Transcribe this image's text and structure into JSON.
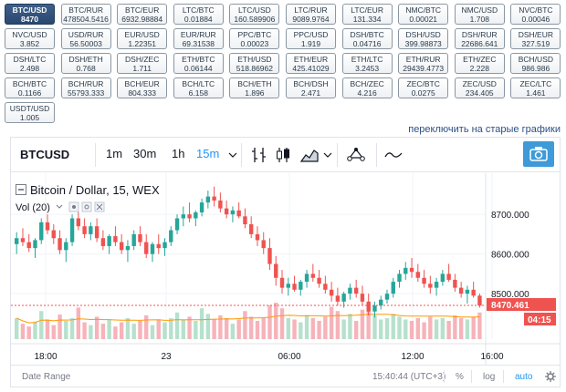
{
  "pairs": [
    {
      "name": "BTC/USD",
      "price": "8470",
      "active": true
    },
    {
      "name": "BTC/RUR",
      "price": "478504.5416"
    },
    {
      "name": "BTC/EUR",
      "price": "6932.98884"
    },
    {
      "name": "LTC/BTC",
      "price": "0.01884"
    },
    {
      "name": "LTC/USD",
      "price": "160.589906"
    },
    {
      "name": "LTC/RUR",
      "price": "9089.9764"
    },
    {
      "name": "LTC/EUR",
      "price": "131.334"
    },
    {
      "name": "NMC/BTC",
      "price": "0.00021"
    },
    {
      "name": "NMC/USD",
      "price": "1.708"
    },
    {
      "name": "NVC/BTC",
      "price": "0.00046"
    },
    {
      "name": "NVC/USD",
      "price": "3.852"
    },
    {
      "name": "USD/RUR",
      "price": "56.50003"
    },
    {
      "name": "EUR/USD",
      "price": "1.22351"
    },
    {
      "name": "EUR/RUR",
      "price": "69.31538"
    },
    {
      "name": "PPC/BTC",
      "price": "0.00023"
    },
    {
      "name": "PPC/USD",
      "price": "1.919"
    },
    {
      "name": "DSH/BTC",
      "price": "0.04716"
    },
    {
      "name": "DSH/USD",
      "price": "399.98873"
    },
    {
      "name": "DSH/RUR",
      "price": "22686.641"
    },
    {
      "name": "DSH/EUR",
      "price": "327.519"
    },
    {
      "name": "DSH/LTC",
      "price": "2.498"
    },
    {
      "name": "DSH/ETH",
      "price": "0.768"
    },
    {
      "name": "DSH/ZEC",
      "price": "1.711"
    },
    {
      "name": "ETH/BTC",
      "price": "0.06144"
    },
    {
      "name": "ETH/USD",
      "price": "518.86962"
    },
    {
      "name": "ETH/EUR",
      "price": "425.41029"
    },
    {
      "name": "ETH/LTC",
      "price": "3.2453"
    },
    {
      "name": "ETH/RUR",
      "price": "29439.4773"
    },
    {
      "name": "ETH/ZEC",
      "price": "2.228"
    },
    {
      "name": "BCH/USD",
      "price": "986.986"
    },
    {
      "name": "BCH/BTC",
      "price": "0.1166"
    },
    {
      "name": "BCH/RUR",
      "price": "55793.333"
    },
    {
      "name": "BCH/EUR",
      "price": "804.333"
    },
    {
      "name": "BCH/LTC",
      "price": "6.158"
    },
    {
      "name": "BCH/ETH",
      "price": "1.896"
    },
    {
      "name": "BCH/DSH",
      "price": "2.471"
    },
    {
      "name": "BCH/ZEC",
      "price": "4.216"
    },
    {
      "name": "ZEC/BTC",
      "price": "0.0275"
    },
    {
      "name": "ZEC/USD",
      "price": "234.405"
    },
    {
      "name": "ZEC/LTC",
      "price": "1.461"
    },
    {
      "name": "USDT/USD",
      "price": "1.005"
    }
  ],
  "switch_link": "переключить на старые графики",
  "toolbar": {
    "symbol": "BTCUSD",
    "intervals": [
      "1m",
      "30m",
      "1h",
      "15m"
    ],
    "selected_interval": "15m"
  },
  "legend": {
    "title": "Bitcoin / Dollar, 15, WEX",
    "volume": "Vol (20)"
  },
  "chart_data": {
    "type": "candlestick",
    "price_axis_ticks": [
      "8700.000",
      "8600.000",
      "8500.000"
    ],
    "price_axis_values": [
      8700,
      8600,
      8500
    ],
    "ylim": [
      8390,
      8790
    ],
    "time_axis_ticks": [
      "18:00",
      "23",
      "06:00",
      "12:00",
      "16:00"
    ],
    "last_price": "8470.461",
    "last_price_value": 8470.461,
    "countdown": "04:15",
    "candles": [
      [
        8625,
        8655,
        8600,
        8640
      ],
      [
        8640,
        8665,
        8620,
        8630
      ],
      [
        8630,
        8650,
        8605,
        8615
      ],
      [
        8615,
        8640,
        8590,
        8635
      ],
      [
        8635,
        8690,
        8625,
        8680
      ],
      [
        8680,
        8700,
        8650,
        8660
      ],
      [
        8660,
        8675,
        8625,
        8640
      ],
      [
        8640,
        8660,
        8600,
        8610
      ],
      [
        8610,
        8640,
        8580,
        8630
      ],
      [
        8630,
        8700,
        8620,
        8690
      ],
      [
        8690,
        8720,
        8660,
        8670
      ],
      [
        8670,
        8690,
        8640,
        8650
      ],
      [
        8650,
        8680,
        8635,
        8670
      ],
      [
        8670,
        8690,
        8630,
        8640
      ],
      [
        8640,
        8660,
        8610,
        8620
      ],
      [
        8620,
        8650,
        8600,
        8645
      ],
      [
        8645,
        8670,
        8620,
        8630
      ],
      [
        8630,
        8650,
        8600,
        8610
      ],
      [
        8610,
        8635,
        8580,
        8620
      ],
      [
        8620,
        8660,
        8610,
        8650
      ],
      [
        8650,
        8670,
        8620,
        8630
      ],
      [
        8630,
        8650,
        8590,
        8600
      ],
      [
        8600,
        8630,
        8580,
        8625
      ],
      [
        8625,
        8650,
        8600,
        8615
      ],
      [
        8615,
        8640,
        8595,
        8630
      ],
      [
        8630,
        8670,
        8620,
        8660
      ],
      [
        8660,
        8700,
        8650,
        8690
      ],
      [
        8690,
        8720,
        8670,
        8700
      ],
      [
        8700,
        8730,
        8680,
        8690
      ],
      [
        8690,
        8710,
        8670,
        8705
      ],
      [
        8705,
        8740,
        8695,
        8730
      ],
      [
        8730,
        8760,
        8715,
        8745
      ],
      [
        8745,
        8770,
        8720,
        8735
      ],
      [
        8735,
        8755,
        8705,
        8715
      ],
      [
        8715,
        8735,
        8690,
        8700
      ],
      [
        8700,
        8720,
        8680,
        8710
      ],
      [
        8710,
        8730,
        8690,
        8695
      ],
      [
        8695,
        8715,
        8665,
        8675
      ],
      [
        8675,
        8695,
        8640,
        8650
      ],
      [
        8650,
        8670,
        8620,
        8635
      ],
      [
        8635,
        8655,
        8600,
        8615
      ],
      [
        8615,
        8640,
        8560,
        8575
      ],
      [
        8575,
        8595,
        8520,
        8540
      ],
      [
        8540,
        8560,
        8500,
        8515
      ],
      [
        8515,
        8540,
        8495,
        8525
      ],
      [
        8525,
        8545,
        8505,
        8510
      ],
      [
        8510,
        8535,
        8495,
        8530
      ],
      [
        8530,
        8560,
        8515,
        8550
      ],
      [
        8550,
        8575,
        8530,
        8540
      ],
      [
        8540,
        8560,
        8515,
        8525
      ],
      [
        8525,
        8545,
        8500,
        8510
      ],
      [
        8510,
        8530,
        8480,
        8495
      ],
      [
        8495,
        8515,
        8470,
        8480
      ],
      [
        8480,
        8505,
        8465,
        8500
      ],
      [
        8500,
        8525,
        8485,
        8515
      ],
      [
        8515,
        8535,
        8490,
        8500
      ],
      [
        8500,
        8520,
        8470,
        8480
      ],
      [
        8480,
        8500,
        8445,
        8455
      ],
      [
        8455,
        8480,
        8440,
        8470
      ],
      [
        8470,
        8495,
        8460,
        8485
      ],
      [
        8485,
        8510,
        8475,
        8500
      ],
      [
        8500,
        8540,
        8490,
        8530
      ],
      [
        8530,
        8560,
        8515,
        8550
      ],
      [
        8550,
        8580,
        8535,
        8565
      ],
      [
        8565,
        8590,
        8540,
        8555
      ],
      [
        8555,
        8575,
        8530,
        8540
      ],
      [
        8540,
        8560,
        8515,
        8525
      ],
      [
        8525,
        8545,
        8500,
        8515
      ],
      [
        8515,
        8540,
        8495,
        8530
      ],
      [
        8530,
        8560,
        8520,
        8550
      ],
      [
        8550,
        8575,
        8530,
        8535
      ],
      [
        8535,
        8550,
        8505,
        8515
      ],
      [
        8515,
        8530,
        8490,
        8500
      ],
      [
        8500,
        8520,
        8475,
        8510
      ],
      [
        8510,
        8530,
        8490,
        8495
      ],
      [
        8495,
        8500,
        8465,
        8470
      ]
    ],
    "volumes": [
      30,
      22,
      18,
      25,
      40,
      28,
      20,
      35,
      26,
      30,
      45,
      24,
      20,
      32,
      22,
      28,
      18,
      24,
      30,
      22,
      26,
      34,
      20,
      28,
      24,
      30,
      38,
      28,
      32,
      26,
      44,
      36,
      28,
      34,
      30,
      22,
      28,
      40,
      32,
      26,
      30,
      48,
      52,
      44,
      30,
      28,
      24,
      34,
      30,
      26,
      32,
      46,
      40,
      28,
      36,
      26,
      42,
      50,
      34,
      28,
      30,
      36,
      32,
      28,
      26,
      30,
      24,
      32,
      28,
      30,
      26,
      34,
      30,
      28,
      32,
      38
    ]
  },
  "bottom": {
    "date_range": "Date Range",
    "time": "15:40:44 (UTC+3)",
    "percent": "%",
    "log": "log",
    "auto": "auto"
  }
}
